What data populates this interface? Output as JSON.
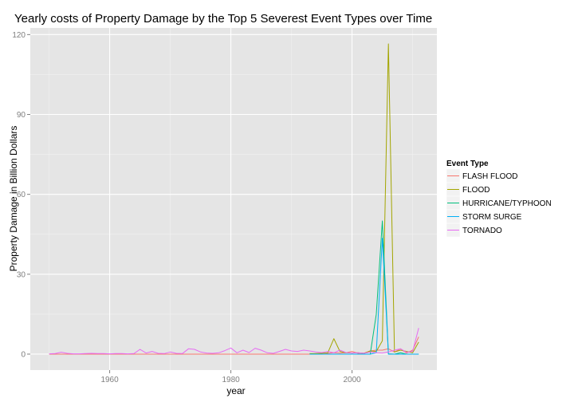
{
  "chart_data": {
    "type": "line",
    "title": "Yearly costs of Property Damage by the Top 5 Severest Event Types over Time",
    "xlabel": "year",
    "ylabel": "Property Damage in Billion Dollars",
    "xlim": [
      1946.9,
      2014.0
    ],
    "ylim": [
      -6.0,
      122.5
    ],
    "x_ticks": [
      1960,
      1980,
      2000
    ],
    "x_tick_labels": [
      "1960",
      "1980",
      "2000"
    ],
    "y_ticks": [
      0,
      30,
      60,
      90,
      120
    ],
    "y_tick_labels": [
      "0",
      "30",
      "60",
      "90",
      "120"
    ],
    "grid": true,
    "legend": {
      "title": "Event Type",
      "placement": "right"
    },
    "series": [
      {
        "name": "FLASH FLOOD",
        "color": "#F8766D",
        "x": [
          1950,
          1993,
          1994,
          1995,
          1996,
          1997,
          1998,
          1999,
          2000,
          2001,
          2002,
          2003,
          2004,
          2005,
          2006,
          2007,
          2008,
          2009,
          2010,
          2011
        ],
        "values": [
          0,
          0,
          0.2,
          0.4,
          0.3,
          0.5,
          0.4,
          0.5,
          1.0,
          0.3,
          0.4,
          1.2,
          1.5,
          1.5,
          2.0,
          0.8,
          2.0,
          0.4,
          1.5,
          6.5
        ]
      },
      {
        "name": "FLOOD",
        "color": "#A3A500",
        "x": [
          1993,
          1994,
          1995,
          1996,
          1997,
          1998,
          1999,
          2000,
          2001,
          2002,
          2003,
          2004,
          2005,
          2006,
          2007,
          2008,
          2009,
          2010,
          2011
        ],
        "values": [
          0.2,
          0.2,
          0.3,
          0.5,
          5.8,
          1.0,
          0.5,
          0.4,
          0.5,
          0.3,
          1.2,
          1.0,
          5.0,
          116.5,
          0.8,
          1.5,
          1.0,
          0.5,
          4.5
        ]
      },
      {
        "name": "HURRICANE/TYPHOON",
        "color": "#00BF7D",
        "x": [
          1993,
          1994,
          1995,
          1996,
          1997,
          1998,
          1999,
          2000,
          2001,
          2002,
          2003,
          2004,
          2005,
          2006,
          2007,
          2008,
          2009,
          2010,
          2011
        ],
        "values": [
          0,
          0,
          0,
          0,
          0,
          0,
          0,
          0,
          0,
          0,
          0,
          15.0,
          50.0,
          0.1,
          0,
          0.5,
          0,
          0,
          0
        ]
      },
      {
        "name": "STORM SURGE",
        "color": "#00B0F6",
        "x": [
          1993,
          1994,
          1995,
          1996,
          1997,
          1998,
          1999,
          2000,
          2001,
          2002,
          2003,
          2004,
          2005,
          2006,
          2007,
          2008,
          2009,
          2010,
          2011
        ],
        "values": [
          0,
          0,
          0,
          0,
          0,
          0,
          0,
          0,
          0,
          0,
          0,
          0.5,
          43.5,
          0,
          0,
          0,
          0,
          0,
          0
        ]
      },
      {
        "name": "TORNADO",
        "color": "#E76BF3",
        "x": [
          1950,
          1951,
          1952,
          1953,
          1954,
          1955,
          1956,
          1957,
          1958,
          1959,
          1960,
          1961,
          1962,
          1963,
          1964,
          1965,
          1966,
          1967,
          1968,
          1969,
          1970,
          1971,
          1972,
          1973,
          1974,
          1975,
          1976,
          1977,
          1978,
          1979,
          1980,
          1981,
          1982,
          1983,
          1984,
          1985,
          1986,
          1987,
          1988,
          1989,
          1990,
          1991,
          1992,
          1993,
          1994,
          1995,
          1996,
          1997,
          1998,
          1999,
          2000,
          2001,
          2002,
          2003,
          2004,
          2005,
          2006,
          2007,
          2008,
          2009,
          2010,
          2011
        ],
        "values": [
          0.1,
          0.2,
          0.7,
          0.3,
          0.1,
          0.1,
          0.2,
          0.3,
          0.2,
          0.2,
          0.1,
          0.2,
          0.2,
          0.1,
          0.2,
          1.8,
          0.4,
          1.0,
          0.3,
          0.2,
          0.8,
          0.3,
          0.2,
          2.0,
          1.8,
          0.8,
          0.4,
          0.3,
          0.5,
          1.3,
          2.3,
          0.5,
          1.5,
          0.6,
          2.2,
          1.5,
          0.5,
          0.3,
          1.0,
          1.8,
          1.2,
          1.0,
          1.5,
          1.2,
          0.8,
          0.6,
          1.0,
          0.5,
          1.5,
          0.6,
          0.4,
          0.5,
          0.3,
          0.8,
          0.5,
          0.4,
          0.8,
          1.5,
          2.0,
          0.7,
          1.0,
          9.8
        ]
      }
    ]
  }
}
